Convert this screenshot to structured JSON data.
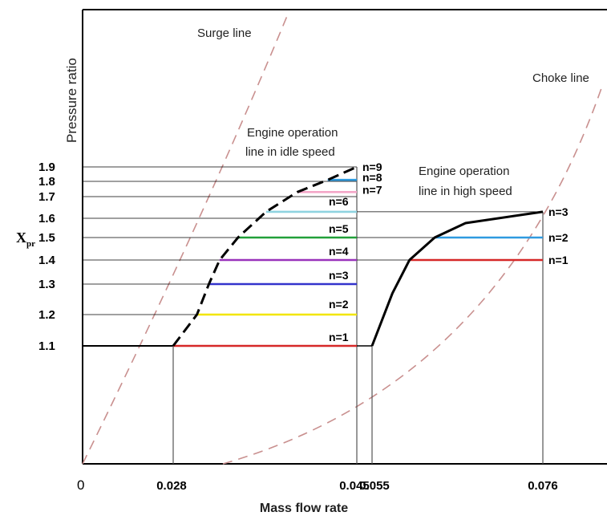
{
  "chart_data": {
    "type": "line",
    "xlabel": "Mass flow rate",
    "ylabel": "Pressure ratio",
    "y_symbol": "X",
    "y_symbol_sub": "pr",
    "x_origin_label": "0",
    "x_ticks": [
      {
        "value": 0.028,
        "label": "0.028"
      },
      {
        "value": 0.045,
        "label": "0.045"
      },
      {
        "value": 0.055,
        "label": "0.055"
      },
      {
        "value": 0.076,
        "label": "0.076"
      }
    ],
    "y_ticks": [
      {
        "value": 1.1,
        "label": "1.1"
      },
      {
        "value": 1.2,
        "label": "1.2"
      },
      {
        "value": 1.3,
        "label": "1.3"
      },
      {
        "value": 1.4,
        "label": "1.4"
      },
      {
        "value": 1.5,
        "label": "1.5"
      },
      {
        "value": 1.6,
        "label": "1.6"
      },
      {
        "value": 1.7,
        "label": "1.7"
      },
      {
        "value": 1.8,
        "label": "1.8"
      },
      {
        "value": 1.9,
        "label": "1.9"
      }
    ],
    "annotations": {
      "surge": "Surge line",
      "choke": "Choke line",
      "idle_1": "Engine operation",
      "idle_2": "line in idle speed",
      "high_1": "Engine operation",
      "high_2": "line in high speed"
    },
    "idle_speed": {
      "speeds": [
        {
          "label": "n=1",
          "x_start": 0.028,
          "x_end": 0.045,
          "y": 1.1,
          "color": "#d62828"
        },
        {
          "label": "n=2",
          "x_start": 0.0302,
          "x_end": 0.045,
          "y": 1.2,
          "color": "#f2e600"
        },
        {
          "label": "n=3",
          "x_start": 0.0313,
          "x_end": 0.045,
          "y": 1.3,
          "color": "#3333cc"
        },
        {
          "label": "n=4",
          "x_start": 0.0323,
          "x_end": 0.045,
          "y": 1.4,
          "color": "#9933bb"
        },
        {
          "label": "n=5",
          "x_start": 0.034,
          "x_end": 0.045,
          "y": 1.5,
          "color": "#22a03a"
        },
        {
          "label": "n=6",
          "x_start": 0.0366,
          "x_end": 0.045,
          "y": 1.63,
          "color": "#8fd3e0"
        },
        {
          "label": "n=7",
          "x_start": 0.0395,
          "x_end": 0.045,
          "y": 1.73,
          "color": "#f4a6c8"
        },
        {
          "label": "n=8",
          "x_start": 0.0423,
          "x_end": 0.045,
          "y": 1.81,
          "color": "#2f9be0"
        },
        {
          "label": "n=9",
          "x_start": 0.045,
          "x_end": 0.045,
          "y": 1.9,
          "color": "#111111"
        }
      ],
      "operation_line": [
        [
          0.028,
          1.1
        ],
        [
          0.0302,
          1.2
        ],
        [
          0.0313,
          1.3
        ],
        [
          0.0323,
          1.4
        ],
        [
          0.034,
          1.5
        ],
        [
          0.0366,
          1.63
        ],
        [
          0.0395,
          1.73
        ],
        [
          0.0423,
          1.81
        ],
        [
          0.045,
          1.9
        ]
      ]
    },
    "high_speed": {
      "speeds": [
        {
          "label": "n=1",
          "x_start": 0.0596,
          "x_end": 0.076,
          "y": 1.4,
          "color": "#d62828"
        },
        {
          "label": "n=2",
          "x_start": 0.0627,
          "x_end": 0.076,
          "y": 1.5,
          "color": "#2f9be0"
        },
        {
          "label": "n=3",
          "x_start": 0.076,
          "x_end": 0.076,
          "y": 1.63,
          "color": "#111111"
        }
      ],
      "operation_line": [
        [
          0.055,
          1.1
        ],
        [
          0.0575,
          1.27
        ],
        [
          0.0596,
          1.4
        ],
        [
          0.0627,
          1.5
        ],
        [
          0.0665,
          1.575
        ],
        [
          0.076,
          1.63
        ]
      ]
    },
    "grid": false
  }
}
